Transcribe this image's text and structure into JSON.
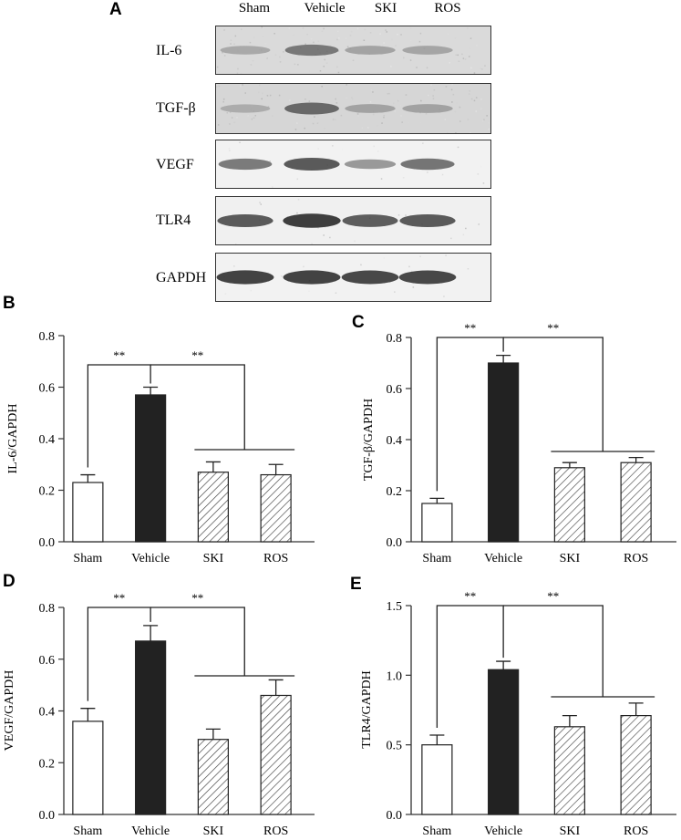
{
  "panel_letters": {
    "A": "A",
    "B": "B",
    "C": "C",
    "D": "D",
    "E": "E"
  },
  "blot": {
    "lanes": [
      "Sham",
      "Vehicle",
      "SKI",
      "ROS"
    ],
    "bands": [
      {
        "label": "IL-6",
        "intensity": [
          0.35,
          0.62,
          0.38,
          0.37
        ],
        "background": "#dadada",
        "noise": 0.55
      },
      {
        "label": "TGF-β",
        "intensity": [
          0.33,
          0.7,
          0.38,
          0.38
        ],
        "background": "#d6d6d6",
        "noise": 0.6
      },
      {
        "label": "VEGF",
        "intensity": [
          0.62,
          0.8,
          0.45,
          0.65
        ],
        "background": "#f2f2f2",
        "noise": 0.1
      },
      {
        "label": "TLR4",
        "intensity": [
          0.8,
          0.95,
          0.78,
          0.8
        ],
        "background": "#f0f0f0",
        "noise": 0.1
      },
      {
        "label": "GAPDH",
        "intensity": [
          0.92,
          0.92,
          0.9,
          0.9
        ],
        "background": "#f2f2f2",
        "noise": 0.1
      }
    ]
  },
  "significance_mark": "**",
  "colors": {
    "sham": "#ffffff",
    "vehicle": "#222222",
    "hatch": "#444444",
    "axis": "#333333"
  },
  "chart_data": [
    {
      "panel": "B",
      "type": "bar",
      "categories": [
        "Sham",
        "Vehicle",
        "SKI",
        "ROS"
      ],
      "values": [
        0.23,
        0.57,
        0.27,
        0.26
      ],
      "errors": [
        0.03,
        0.03,
        0.04,
        0.04
      ],
      "ylabel": "IL-6/GAPDH",
      "ylim": [
        0,
        0.8
      ],
      "yticks": [
        "0.0",
        "0.2",
        "0.4",
        "0.6",
        "0.8"
      ],
      "tickvals": [
        0,
        0.2,
        0.4,
        0.6,
        0.8
      ]
    },
    {
      "panel": "C",
      "type": "bar",
      "categories": [
        "Sham",
        "Vehicle",
        "SKI",
        "ROS"
      ],
      "values": [
        0.15,
        0.7,
        0.29,
        0.31
      ],
      "errors": [
        0.02,
        0.03,
        0.02,
        0.02
      ],
      "ylabel": "TGF-β/GAPDH",
      "ylim": [
        0,
        0.8
      ],
      "yticks": [
        "0.0",
        "0.2",
        "0.4",
        "0.6",
        "0.8"
      ],
      "tickvals": [
        0,
        0.2,
        0.4,
        0.6,
        0.8
      ]
    },
    {
      "panel": "D",
      "type": "bar",
      "categories": [
        "Sham",
        "Vehicle",
        "SKI",
        "ROS"
      ],
      "values": [
        0.36,
        0.67,
        0.29,
        0.46
      ],
      "errors": [
        0.05,
        0.06,
        0.04,
        0.06
      ],
      "ylabel": "VEGF/GAPDH",
      "ylim": [
        0,
        0.8
      ],
      "yticks": [
        "0.0",
        "0.2",
        "0.4",
        "0.6",
        "0.8"
      ],
      "tickvals": [
        0,
        0.2,
        0.4,
        0.6,
        0.8
      ]
    },
    {
      "panel": "E",
      "type": "bar",
      "categories": [
        "Sham",
        "Vehicle",
        "SKI",
        "ROS"
      ],
      "values": [
        0.5,
        1.04,
        0.63,
        0.71
      ],
      "errors": [
        0.07,
        0.06,
        0.08,
        0.09
      ],
      "ylabel": "TLR4/GAPDH",
      "ylim": [
        0,
        1.5
      ],
      "yticks": [
        "0.0",
        "0.5",
        "1.0",
        "1.5"
      ],
      "tickvals": [
        0,
        0.5,
        1.0,
        1.5
      ]
    }
  ]
}
